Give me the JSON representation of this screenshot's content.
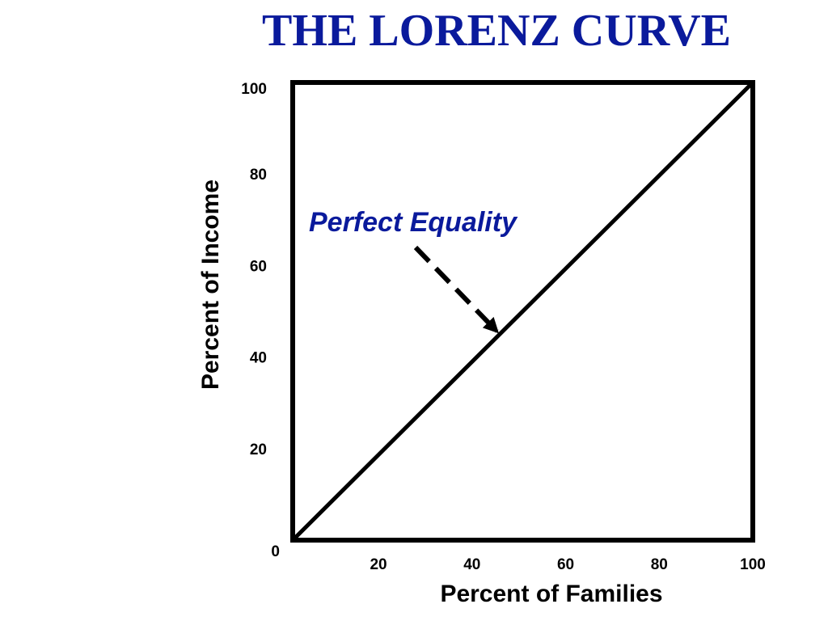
{
  "chart_data": {
    "type": "line",
    "title": "THE LORENZ CURVE",
    "xlabel": "Percent of Families",
    "ylabel": "Percent of Income",
    "xlim": [
      0,
      100
    ],
    "ylim": [
      0,
      100
    ],
    "x_ticks": [
      {
        "value": 20,
        "label": "20"
      },
      {
        "value": 40,
        "label": "40"
      },
      {
        "value": 60,
        "label": "60"
      },
      {
        "value": 80,
        "label": "80"
      },
      {
        "value": 100,
        "label": "100"
      }
    ],
    "y_ticks": [
      {
        "value": 0,
        "label": "0"
      },
      {
        "value": 20,
        "label": "20"
      },
      {
        "value": 40,
        "label": "40"
      },
      {
        "value": 60,
        "label": "60"
      },
      {
        "value": 80,
        "label": "80"
      },
      {
        "value": 100,
        "label": "100"
      }
    ],
    "grid": false,
    "series": [
      {
        "x": [
          0,
          100
        ],
        "y": [
          0,
          100
        ],
        "color": "#000000"
      }
    ],
    "annotations": [
      {
        "text": "Perfect Equality",
        "color": "#0A1A9C",
        "arrow_to": {
          "x": 44,
          "y": 46
        }
      }
    ]
  },
  "colors": {
    "title": "#0A1A9C",
    "axis": "#000000",
    "annotation": "#0A1A9C"
  }
}
